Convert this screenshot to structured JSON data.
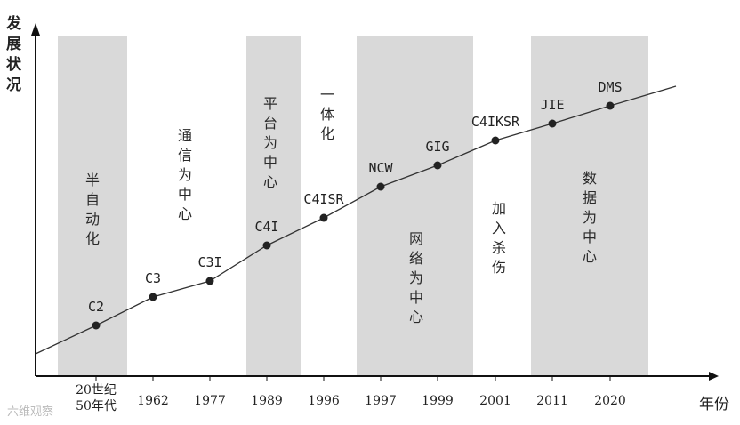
{
  "chart_data": {
    "type": "line",
    "ylabel": "发展状况",
    "xlabel": "年份",
    "x_ticks": [
      "20世纪50年代",
      "1962",
      "1977",
      "1989",
      "1996",
      "1997",
      "1999",
      "2001",
      "2011",
      "2020"
    ],
    "points": [
      {
        "x": "20世纪50年代",
        "label": "C2"
      },
      {
        "x": "1962",
        "label": "C3"
      },
      {
        "x": "1977",
        "label": "C3I"
      },
      {
        "x": "1989",
        "label": "C4I"
      },
      {
        "x": "1996",
        "label": "C4ISR"
      },
      {
        "x": "1997",
        "label": "NCW"
      },
      {
        "x": "1999",
        "label": "GIG"
      },
      {
        "x": "2001",
        "label": "C4IKSR"
      },
      {
        "x": "2011",
        "label": "JIE"
      },
      {
        "x": "2020",
        "label": "DMS"
      }
    ],
    "phases": [
      "半自动化",
      "通信为中心",
      "平台为中心",
      "一体化",
      "网络为中心",
      "加入杀伤",
      "数据为中心"
    ]
  },
  "watermark": "六维观察",
  "colors": {
    "band": "#d9d9d9",
    "line": "#333333",
    "point": "#222222"
  }
}
